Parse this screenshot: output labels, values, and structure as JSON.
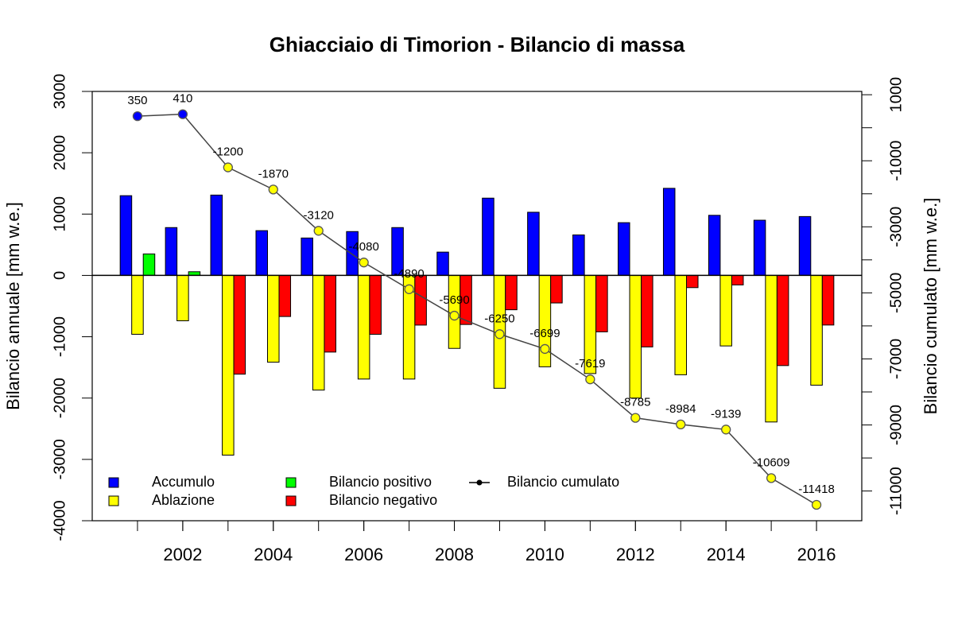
{
  "chart_data": {
    "type": "bar",
    "title": "Ghiacciaio di Timorion - Bilancio di massa",
    "ylabel": "Bilancio annuale [mm w.e.]",
    "y2label": "Bilancio cumulato [mm w.e.]",
    "x": [
      2001,
      2002,
      2003,
      2004,
      2005,
      2006,
      2007,
      2008,
      2009,
      2010,
      2011,
      2012,
      2013,
      2014,
      2015,
      2016
    ],
    "xlim": [
      2000,
      2017
    ],
    "xticks": [
      2002,
      2004,
      2006,
      2008,
      2010,
      2012,
      2014,
      2016
    ],
    "ylim": [
      -4000,
      3000
    ],
    "yticks": [
      -4000,
      -3000,
      -2000,
      -1000,
      0,
      1000,
      2000,
      3000
    ],
    "y2lim": [
      -11900,
      1100
    ],
    "y2ticks": [
      -11000,
      -9000,
      -7000,
      -5000,
      -3000,
      -1000,
      1000
    ],
    "legend": "bottomleft",
    "series": [
      {
        "name": "Accumulo",
        "color": "#0000ff",
        "values": [
          1300,
          780,
          1310,
          730,
          610,
          715,
          780,
          380,
          1260,
          1030,
          660,
          860,
          1420,
          980,
          900,
          960
        ]
      },
      {
        "name": "Ablazione",
        "color": "#ffff00",
        "values": [
          -960,
          -740,
          -2930,
          -1415,
          -1870,
          -1690,
          -1690,
          -1190,
          -1840,
          -1490,
          -1600,
          -2000,
          -1620,
          -1150,
          -2390,
          -1790
        ]
      },
      {
        "name": "Bilancio positivo",
        "color": "#00ff00",
        "values": [
          350,
          60,
          null,
          null,
          null,
          null,
          null,
          null,
          null,
          null,
          null,
          null,
          null,
          null,
          null,
          null
        ]
      },
      {
        "name": "Bilancio negativo",
        "color": "#ff0000",
        "values": [
          null,
          null,
          -1610,
          -670,
          -1250,
          -960,
          -810,
          -800,
          -560,
          -449,
          -920,
          -1166,
          -199,
          -155,
          -1470,
          -809
        ]
      },
      {
        "name": "Bilancio cumulato",
        "type": "line",
        "axis": "y2",
        "color": "#000000",
        "values": [
          350,
          410,
          -1200,
          -1870,
          -3120,
          -4080,
          -4890,
          -5690,
          -6250,
          -6699,
          -7619,
          -8785,
          -8984,
          -9139,
          -10609,
          -11418
        ]
      }
    ]
  }
}
